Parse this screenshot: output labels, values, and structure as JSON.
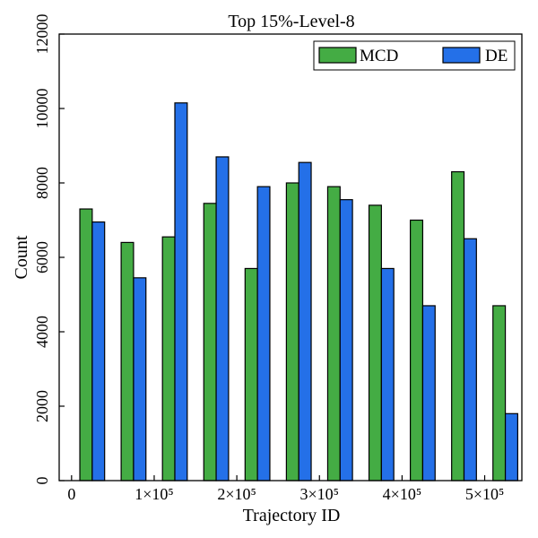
{
  "chart_data": {
    "type": "bar",
    "title": "Top 15%-Level-8",
    "xlabel": "Trajectory ID",
    "ylabel": "Count",
    "xlim": [
      -15000,
      545000
    ],
    "ylim": [
      0,
      12000
    ],
    "x_ticks": [
      {
        "value": 0,
        "label": "0"
      },
      {
        "value": 100000,
        "label": "1×10⁵"
      },
      {
        "value": 200000,
        "label": "2×10⁵"
      },
      {
        "value": 300000,
        "label": "3×10⁵"
      },
      {
        "value": 400000,
        "label": "4×10⁵"
      },
      {
        "value": 500000,
        "label": "5×10⁵"
      }
    ],
    "y_ticks": [
      {
        "value": 0,
        "label": "0"
      },
      {
        "value": 2000,
        "label": "2000"
      },
      {
        "value": 4000,
        "label": "4000"
      },
      {
        "value": 6000,
        "label": "6000"
      },
      {
        "value": 8000,
        "label": "8000"
      },
      {
        "value": 10000,
        "label": "10000"
      },
      {
        "value": 12000,
        "label": "12000"
      }
    ],
    "legend_position": "top-right",
    "x": [
      25000,
      75000,
      125000,
      175000,
      225000,
      275000,
      325000,
      375000,
      425000,
      475000,
      525000
    ],
    "series": [
      {
        "name": "MCD",
        "color": "#44ac44",
        "values": [
          7300,
          6400,
          6550,
          7450,
          5700,
          8000,
          7900,
          7400,
          7000,
          8300,
          4700
        ]
      },
      {
        "name": "DE",
        "color": "#2470e8",
        "values": [
          6950,
          5450,
          10150,
          8700,
          7900,
          8550,
          7550,
          5700,
          4700,
          6500,
          1800
        ]
      }
    ]
  }
}
